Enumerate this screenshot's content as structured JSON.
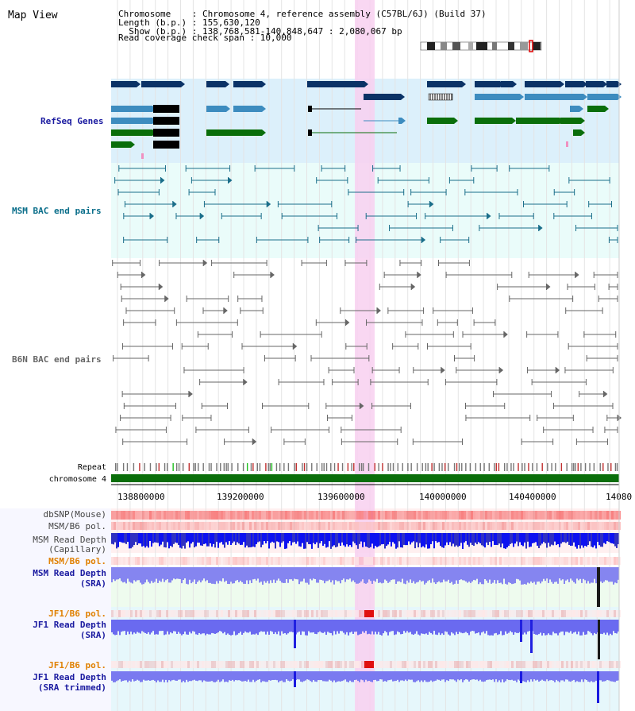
{
  "page": {
    "title": "Map View",
    "info_lines": [
      "Chromosome    : Chromosome 4, reference assembly (C57BL/6J) (Build 37)",
      "Length (b.p.) : 155,630,120",
      "  Show (b.p.) : 138,768,581-140,848,647 : 2,080,067 bp",
      "Read coverage check span : 10,000"
    ]
  },
  "tracks": {
    "refseq": {
      "label": "RefSeq Genes"
    },
    "msm_bac": {
      "label": "MSM BAC end pairs"
    },
    "b6n_bac": {
      "label": "B6N BAC end pairs"
    },
    "repeat": {
      "label": "Repeat"
    },
    "chromosome": {
      "label": "chromosome 4"
    },
    "axis_ticks": [
      "138800000",
      "139200000",
      "139600000",
      "140000000",
      "140400000",
      "14080"
    ],
    "dbsnp": {
      "label": "dbSNP(Mouse)"
    },
    "msm_b6_pol_1": {
      "label": "MSM/B6 pol."
    },
    "msm_depth_cap": {
      "label_1": "MSM Read Depth",
      "label_2": "(Capillary)"
    },
    "msm_b6_pol_2": {
      "label": "MSM/B6 pol."
    },
    "msm_depth_sra": {
      "label_1": "MSM Read Depth",
      "label_2": "(SRA)"
    },
    "jf1_b6_pol_1": {
      "label": "JF1/B6 pol."
    },
    "jf1_depth_sra": {
      "label_1": "JF1 Read Depth",
      "label_2": "(SRA)"
    },
    "jf1_b6_pol_2": {
      "label": "JF1/B6 pol."
    },
    "jf1_depth_trim": {
      "label_1": "JF1 Read Depth",
      "label_2": "(SRA trimmed)"
    }
  },
  "colors": {
    "refseq_bg": "#dcf0fb",
    "bac_bg": "#eafcfa",
    "gene_dark": "#0a3266",
    "gene_mid": "#3d8cbf",
    "gene_green": "#0a6e0a",
    "highlight": "#f8d0f0",
    "depth_blue": "#0d12f0",
    "depth_light": "#8080f0",
    "snp_red": "#f05050"
  }
}
